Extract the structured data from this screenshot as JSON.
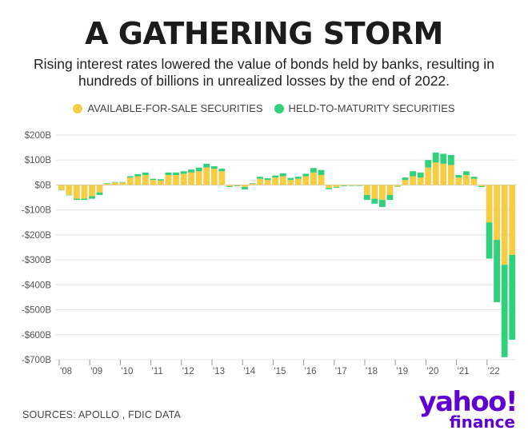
{
  "header": {
    "title": "A GATHERING STORM",
    "subtitle": "Rising interest rates lowered the value of bonds held by banks, resulting in hundreds of billions in unrealized losses by the end of 2022."
  },
  "legend": {
    "afs_label": "AVAILABLE-FOR-SALE SECURITIES",
    "htm_label": "HELD-TO-MATURITY SECURITIES"
  },
  "footer": {
    "source": "SOURCES: APOLLO , FDIC DATA",
    "logo_main": "yahoo!",
    "logo_sub": "finance"
  },
  "colors": {
    "afs": "#f7cd46",
    "htm": "#2fd17a",
    "grid": "#e3e3e3",
    "axis_text": "#555555"
  },
  "chart_data": {
    "type": "bar",
    "stacked": true,
    "title": "",
    "xlabel": "",
    "ylabel": "",
    "ylim": [
      -700,
      200
    ],
    "y_ticks": [
      200,
      100,
      0,
      -100,
      -200,
      -300,
      -400,
      -500,
      -600,
      -700
    ],
    "y_tick_labels": [
      "$200B",
      "$100B",
      "$0B",
      "-$100B",
      "-$200B",
      "-$300B",
      "-$400B",
      "-$500B",
      "-$600B",
      "-$700B"
    ],
    "x_tick_labels": [
      "'08",
      "'09",
      "'10",
      "'11",
      "'12",
      "'13",
      "'14",
      "'15",
      "'16",
      "'17",
      "'18",
      "'19",
      "'20",
      "'21",
      "'22"
    ],
    "categories": [
      "2008Q1",
      "2008Q2",
      "2008Q3",
      "2008Q4",
      "2009Q1",
      "2009Q2",
      "2009Q3",
      "2009Q4",
      "2010Q1",
      "2010Q2",
      "2010Q3",
      "2010Q4",
      "2011Q1",
      "2011Q2",
      "2011Q3",
      "2011Q4",
      "2012Q1",
      "2012Q2",
      "2012Q3",
      "2012Q4",
      "2013Q1",
      "2013Q2",
      "2013Q3",
      "2013Q4",
      "2014Q1",
      "2014Q2",
      "2014Q3",
      "2014Q4",
      "2015Q1",
      "2015Q2",
      "2015Q3",
      "2015Q4",
      "2016Q1",
      "2016Q2",
      "2016Q3",
      "2016Q4",
      "2017Q1",
      "2017Q2",
      "2017Q3",
      "2017Q4",
      "2018Q1",
      "2018Q2",
      "2018Q3",
      "2018Q4",
      "2019Q1",
      "2019Q2",
      "2019Q3",
      "2019Q4",
      "2020Q1",
      "2020Q2",
      "2020Q3",
      "2020Q4",
      "2021Q1",
      "2021Q2",
      "2021Q3",
      "2021Q4",
      "2022Q1",
      "2022Q2",
      "2022Q3",
      "2022Q4"
    ],
    "series": [
      {
        "name": "AVAILABLE-FOR-SALE SECURITIES",
        "values": [
          -20,
          -40,
          -55,
          -55,
          -45,
          -30,
          5,
          10,
          10,
          30,
          35,
          40,
          20,
          18,
          40,
          40,
          45,
          50,
          55,
          70,
          65,
          55,
          -5,
          -3,
          -8,
          5,
          25,
          20,
          30,
          35,
          20,
          25,
          35,
          50,
          40,
          -12,
          -8,
          -3,
          -2,
          -2,
          -40,
          -55,
          -60,
          -40,
          -5,
          20,
          35,
          30,
          70,
          90,
          85,
          80,
          30,
          40,
          25,
          -5,
          -150,
          -220,
          -320,
          -280
        ]
      },
      {
        "name": "HELD-TO-MATURITY SECURITIES",
        "values": [
          0,
          0,
          -5,
          -5,
          -10,
          -10,
          2,
          2,
          2,
          5,
          8,
          10,
          5,
          5,
          10,
          10,
          10,
          12,
          15,
          15,
          10,
          10,
          -3,
          -2,
          -10,
          2,
          8,
          7,
          8,
          12,
          8,
          8,
          10,
          18,
          20,
          -5,
          -3,
          -2,
          -1,
          -1,
          -20,
          -20,
          -28,
          -20,
          -2,
          10,
          20,
          20,
          30,
          40,
          40,
          40,
          10,
          15,
          8,
          -3,
          -145,
          -250,
          -370,
          -340
        ]
      }
    ]
  }
}
